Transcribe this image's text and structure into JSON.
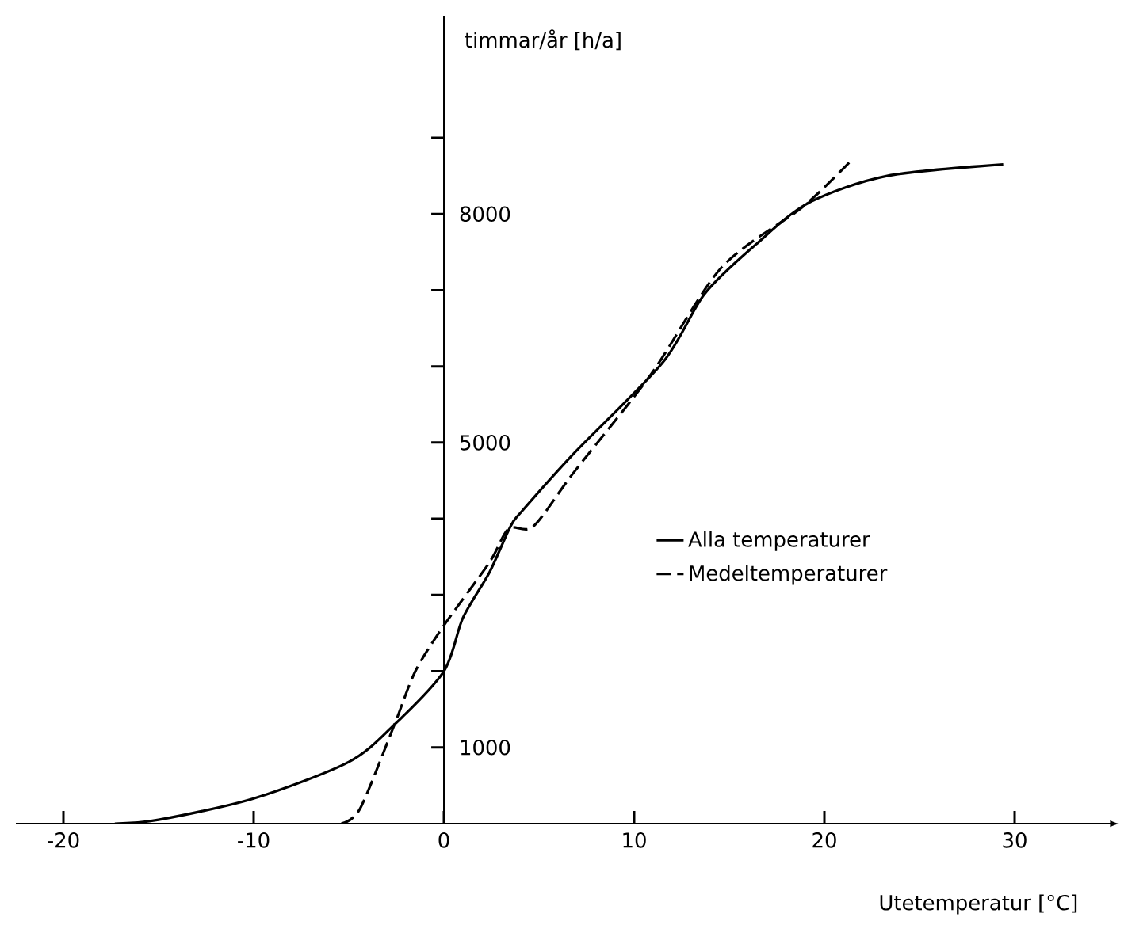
{
  "chart_data": {
    "type": "line",
    "xlabel": "Utetemperatur  [°C]",
    "ylabel": "timmar/år   [h/a]",
    "xlim": [
      -22.5,
      35
    ],
    "ylim": [
      0,
      10600
    ],
    "xticks": [
      -20,
      -10,
      0,
      10,
      20,
      30
    ],
    "yticks": [
      {
        "value": 1000,
        "label": "1000"
      },
      {
        "value": 2000,
        "label": null
      },
      {
        "value": 3000,
        "label": null
      },
      {
        "value": 4000,
        "label": null
      },
      {
        "value": 5000,
        "label": "5000"
      },
      {
        "value": 6000,
        "label": null
      },
      {
        "value": 7000,
        "label": null
      },
      {
        "value": 8000,
        "label": "8000"
      },
      {
        "value": 9000,
        "label": null
      }
    ],
    "legend": "right",
    "grid": false,
    "marker": "none",
    "series": [
      {
        "name": "Alla temperaturer",
        "color": "#000000",
        "line_style": "solid",
        "x": [
          -17.3,
          -15,
          -10,
          -5,
          -2.6,
          0,
          1,
          2.4,
          3.5,
          4.1,
          6.8,
          11.5,
          13.7,
          16.4,
          19.2,
          23.3,
          29.4
        ],
        "values": [
          0,
          50,
          330,
          810,
          1300,
          2000,
          2700,
          3300,
          3900,
          4100,
          4850,
          6050,
          6950,
          7600,
          8150,
          8500,
          8650
        ]
      },
      {
        "name": "Medeltemperaturer",
        "color": "#000000",
        "line_style": "dashed",
        "x": [
          -5.4,
          -4.4,
          -2.6,
          -1.5,
          0,
          2.4,
          3.4,
          4.7,
          6.8,
          10.9,
          14.6,
          18.9,
          21.4
        ],
        "values": [
          0,
          200,
          1300,
          2000,
          2600,
          3430,
          3870,
          3900,
          4600,
          5900,
          7300,
          8100,
          8700
        ]
      }
    ]
  }
}
